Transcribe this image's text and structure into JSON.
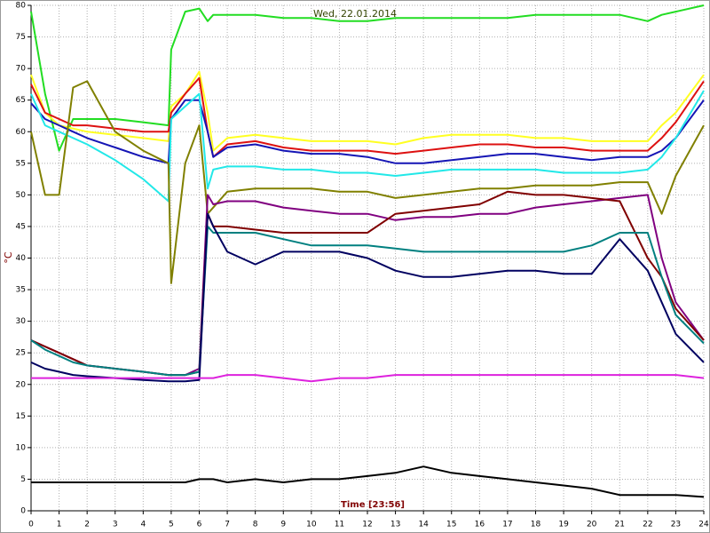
{
  "chart_data": {
    "type": "line",
    "title": "Wed, 22.01.2014",
    "x_label": "Time [23:56]",
    "y_label": "°C",
    "x": [
      0,
      0.5,
      1,
      1.5,
      2,
      3,
      4,
      4.9,
      5,
      5.5,
      6,
      6.3,
      6.5,
      7,
      8,
      9,
      10,
      11,
      12,
      13,
      14,
      15,
      16,
      17,
      18,
      19,
      20,
      21,
      22,
      22.5,
      23,
      24
    ],
    "xlim": [
      0,
      24
    ],
    "xticks": [
      0,
      1,
      2,
      3,
      4,
      5,
      6,
      7,
      8,
      9,
      10,
      11,
      12,
      13,
      14,
      15,
      16,
      17,
      18,
      19,
      20,
      21,
      22,
      23,
      24
    ],
    "ylim": [
      0,
      80
    ],
    "yticks": [
      0,
      5,
      10,
      15,
      20,
      25,
      30,
      35,
      40,
      45,
      50,
      55,
      60,
      65,
      70,
      75,
      80
    ],
    "grid": true,
    "series": [
      {
        "color": "#22dd22",
        "values": [
          79,
          66,
          57,
          62,
          62,
          62,
          61.5,
          61,
          73,
          79,
          79.5,
          77.5,
          78.5,
          78.5,
          78.5,
          78,
          78,
          77.5,
          77.5,
          78,
          78,
          78,
          78,
          78,
          78.5,
          78.5,
          78.5,
          78.5,
          77.5,
          78.5,
          79,
          80
        ]
      },
      {
        "color": "#ffff22",
        "values": [
          69,
          63,
          61,
          60.5,
          60,
          59.5,
          59,
          58.5,
          64,
          66,
          69.5,
          63,
          57,
          59,
          59.5,
          59,
          58.5,
          58.5,
          58.5,
          58,
          59,
          59.5,
          59.5,
          59.5,
          59,
          59,
          58.5,
          58.5,
          58.5,
          61,
          63,
          69
        ]
      },
      {
        "color": "#dd1111",
        "values": [
          67.5,
          63,
          62,
          61,
          61,
          60.5,
          60,
          60,
          63,
          66,
          68.5,
          60,
          56,
          58,
          58.5,
          57.5,
          57,
          57,
          57,
          56.5,
          57,
          57.5,
          58,
          58,
          57.5,
          57.5,
          57,
          57,
          57,
          59,
          61.5,
          68
        ]
      },
      {
        "color": "#1515b5",
        "values": [
          64.5,
          62,
          61,
          60,
          59,
          57.5,
          56,
          55,
          62,
          65,
          65,
          60,
          56,
          57.5,
          58,
          57,
          56.5,
          56.5,
          56,
          55,
          55,
          55.5,
          56,
          56.5,
          56.5,
          56,
          55.5,
          56,
          56,
          57,
          59,
          65
        ]
      },
      {
        "color": "#22e8e8",
        "values": [
          66,
          61,
          60,
          59,
          58,
          55.5,
          52.5,
          49,
          62,
          64,
          66,
          51,
          54,
          54.5,
          54.5,
          54,
          54,
          53.5,
          53.5,
          53,
          53.5,
          54,
          54,
          54,
          54,
          53.5,
          53.5,
          53.5,
          54,
          56,
          59,
          66.5
        ]
      },
      {
        "color": "#808000",
        "values": [
          60,
          50,
          50,
          67,
          68,
          60,
          57,
          55,
          36,
          55,
          61,
          47,
          48,
          50.5,
          51,
          51,
          51,
          50.5,
          50.5,
          49.5,
          50,
          50.5,
          51,
          51,
          51.5,
          51.5,
          51.5,
          52,
          52,
          47,
          53,
          61
        ]
      },
      {
        "color": "#800080",
        "values": [
          27,
          26,
          25,
          24,
          23,
          22.5,
          22,
          21.5,
          21.5,
          21.5,
          22.5,
          50,
          48.5,
          49,
          49,
          48,
          47.5,
          47,
          47,
          46,
          46.5,
          46.5,
          47,
          47,
          48,
          48.5,
          49,
          49.5,
          50,
          40,
          33,
          27
        ]
      },
      {
        "color": "#800000",
        "values": [
          27,
          26,
          25,
          24,
          23,
          22.5,
          22,
          21.5,
          21.5,
          21.5,
          22,
          47,
          45,
          45,
          44.5,
          44,
          44,
          44,
          44,
          47,
          47.5,
          48,
          48.5,
          50.5,
          50,
          50,
          49.5,
          49,
          40,
          37,
          32,
          27
        ]
      },
      {
        "color": "#008080",
        "values": [
          27,
          25.5,
          24.5,
          23.5,
          23,
          22.5,
          22,
          21.5,
          21.5,
          21.5,
          22,
          45,
          44,
          44,
          44,
          43,
          42,
          42,
          42,
          41.5,
          41,
          41,
          41,
          41,
          41,
          41,
          42,
          44,
          44,
          37,
          31,
          26.5
        ]
      },
      {
        "color": "#000060",
        "values": [
          23.5,
          22.5,
          22,
          21.5,
          21.3,
          21,
          20.7,
          20.5,
          20.5,
          20.5,
          20.7,
          47,
          45,
          41,
          39,
          41,
          41,
          41,
          40,
          38,
          37,
          37,
          37.5,
          38,
          38,
          37.5,
          37.5,
          43,
          38,
          33,
          28,
          23.5
        ]
      },
      {
        "color": "#dd22dd",
        "values": [
          21,
          21,
          21,
          21,
          21,
          21,
          21,
          21,
          21,
          21,
          21,
          21,
          21,
          21.5,
          21.5,
          21,
          20.5,
          21,
          21,
          21.5,
          21.5,
          21.5,
          21.5,
          21.5,
          21.5,
          21.5,
          21.5,
          21.5,
          21.5,
          21.5,
          21.5,
          21
        ]
      },
      {
        "color": "#000000",
        "values": [
          4.5,
          4.5,
          4.5,
          4.5,
          4.5,
          4.5,
          4.5,
          4.5,
          4.5,
          4.5,
          5,
          5,
          5,
          4.5,
          5,
          4.5,
          5,
          5,
          5.5,
          6,
          7,
          6,
          5.5,
          5,
          4.5,
          4,
          3.5,
          2.5,
          2.5,
          2.5,
          2.5,
          2.2
        ]
      }
    ]
  }
}
